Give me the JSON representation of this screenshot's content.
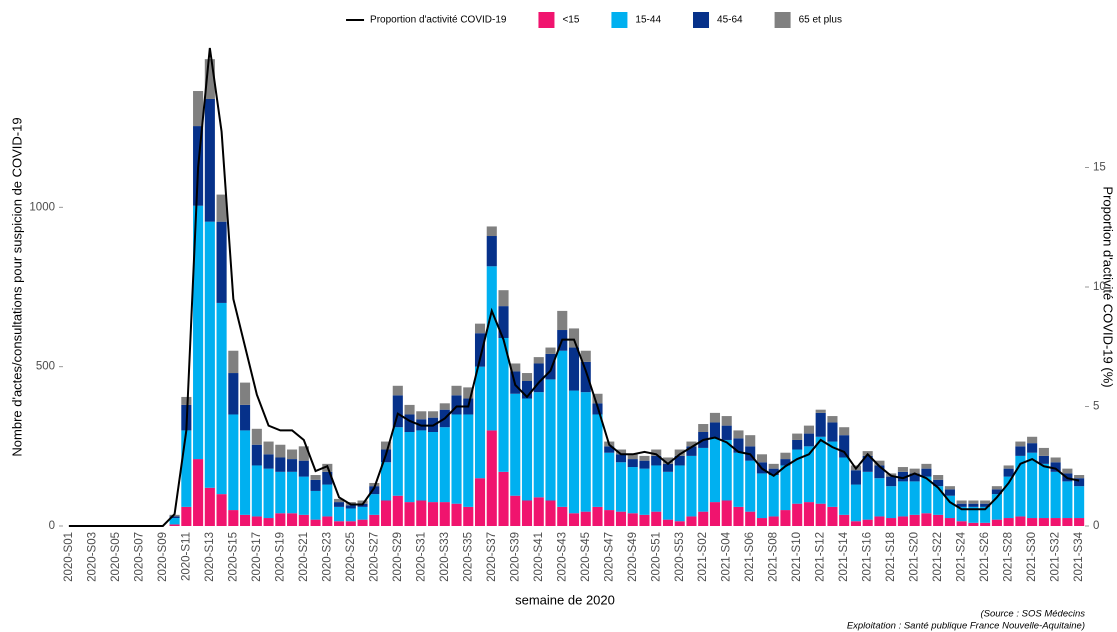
{
  "chart_data": {
    "type": "bar",
    "stacked": true,
    "legend": "top",
    "grid": false,
    "x_label": "semaine de 2020",
    "y_label": "Nombre d'actes/consultations pour suspicion de COVID-19",
    "y2_label": "Proportion d'activité COVID-19 (%)",
    "annotations": [
      "(Source : SOS Médecins",
      "Exploitation : Santé publique France Nouvelle-Aquitaine)"
    ],
    "categories": [
      "2020-S01",
      null,
      "2020-S03",
      null,
      "2020-S05",
      null,
      "2020-S07",
      null,
      "2020-S09",
      null,
      "2020-S11",
      null,
      "2020-S13",
      null,
      "2020-S15",
      null,
      "2020-S17",
      null,
      "2020-S19",
      null,
      "2020-S21",
      null,
      "2020-S23",
      null,
      "2020-S25",
      null,
      "2020-S27",
      null,
      "2020-S29",
      null,
      "2020-S31",
      null,
      "2020-S33",
      null,
      "2020-S35",
      null,
      "2020-S37",
      null,
      "2020-S39",
      null,
      "2020-S41",
      null,
      "2020-S43",
      null,
      "2020-S45",
      null,
      "2020-S47",
      null,
      "2020-S49",
      null,
      "2020-S51",
      null,
      "2020-S53",
      null,
      "2021-S02",
      null,
      "2021-S04",
      null,
      "2021-S06",
      null,
      "2021-S08",
      null,
      "2021-S10",
      null,
      "2021-S12",
      null,
      "2021-S14",
      null,
      "2021-S16",
      null,
      "2021-S18",
      null,
      "2021-S20",
      null,
      "2021-S22",
      null,
      "2021-S24",
      null,
      "2021-S26",
      null,
      "2021-S28",
      null,
      "2021-S30",
      null,
      "2021-S32",
      null,
      "2021-S34"
    ],
    "ylim": [
      0,
      1500
    ],
    "yticks": [
      0,
      500,
      1000
    ],
    "y2lim": [
      0,
      20
    ],
    "y2ticks": [
      0,
      5,
      10,
      15
    ],
    "series": [
      {
        "name": "<15",
        "type": "bar",
        "color": "#f0146e",
        "values": [
          0,
          0,
          0,
          0,
          0,
          0,
          0,
          0,
          0,
          5,
          60,
          210,
          120,
          100,
          50,
          35,
          30,
          25,
          40,
          40,
          35,
          20,
          30,
          15,
          15,
          20,
          35,
          80,
          95,
          75,
          80,
          75,
          75,
          70,
          60,
          150,
          300,
          170,
          95,
          80,
          90,
          80,
          60,
          40,
          45,
          60,
          50,
          45,
          40,
          35,
          45,
          20,
          15,
          30,
          45,
          75,
          80,
          60,
          45,
          25,
          30,
          50,
          70,
          75,
          70,
          60,
          35,
          15,
          20,
          30,
          25,
          30,
          35,
          40,
          35,
          25,
          15,
          10,
          10,
          20,
          25,
          30,
          25,
          25,
          25,
          25,
          25
        ]
      },
      {
        "name": "15-44",
        "type": "bar",
        "color": "#00b0f0",
        "values": [
          0,
          0,
          0,
          0,
          0,
          0,
          0,
          0,
          0,
          20,
          240,
          795,
          835,
          600,
          300,
          265,
          160,
          155,
          130,
          130,
          120,
          90,
          100,
          45,
          40,
          40,
          65,
          120,
          215,
          220,
          220,
          220,
          235,
          280,
          290,
          350,
          515,
          420,
          320,
          320,
          330,
          380,
          490,
          385,
          375,
          290,
          180,
          155,
          145,
          145,
          145,
          150,
          175,
          190,
          200,
          200,
          190,
          170,
          160,
          140,
          130,
          140,
          170,
          175,
          210,
          205,
          180,
          115,
          150,
          120,
          100,
          110,
          105,
          115,
          90,
          70,
          45,
          50,
          50,
          80,
          130,
          190,
          205,
          170,
          145,
          115,
          100
        ]
      },
      {
        "name": "45-64",
        "type": "bar",
        "color": "#06318a",
        "values": [
          0,
          0,
          0,
          0,
          0,
          0,
          0,
          0,
          0,
          5,
          80,
          250,
          385,
          255,
          130,
          80,
          65,
          45,
          45,
          40,
          50,
          35,
          40,
          15,
          10,
          10,
          25,
          40,
          100,
          55,
          35,
          45,
          55,
          60,
          50,
          105,
          95,
          100,
          70,
          55,
          90,
          80,
          65,
          135,
          95,
          35,
          20,
          25,
          25,
          25,
          30,
          25,
          30,
          30,
          50,
          50,
          45,
          45,
          45,
          35,
          20,
          20,
          30,
          40,
          75,
          60,
          70,
          45,
          50,
          40,
          30,
          30,
          25,
          25,
          20,
          20,
          10,
          10,
          10,
          15,
          25,
          30,
          30,
          25,
          30,
          25,
          25
        ]
      },
      {
        "name": "65 et plus",
        "type": "bar",
        "color": "#808080",
        "values": [
          0,
          0,
          0,
          0,
          0,
          0,
          0,
          0,
          0,
          5,
          25,
          110,
          125,
          85,
          70,
          70,
          50,
          40,
          40,
          30,
          45,
          15,
          25,
          10,
          10,
          10,
          10,
          25,
          30,
          30,
          25,
          20,
          20,
          30,
          35,
          30,
          30,
          50,
          25,
          25,
          20,
          20,
          60,
          60,
          35,
          30,
          15,
          15,
          15,
          15,
          20,
          20,
          20,
          15,
          25,
          30,
          30,
          25,
          35,
          25,
          15,
          20,
          20,
          25,
          10,
          20,
          25,
          15,
          15,
          15,
          10,
          15,
          15,
          15,
          15,
          10,
          10,
          10,
          10,
          10,
          10,
          15,
          20,
          25,
          15,
          15,
          10
        ]
      },
      {
        "name": "Proportion d'activité COVID-19",
        "type": "line",
        "axis": "y2",
        "color": "#000000",
        "values": [
          0,
          0,
          0,
          0,
          0,
          0,
          0,
          0,
          0,
          0.5,
          4,
          15,
          20,
          16.5,
          9.5,
          7.5,
          5.5,
          4.2,
          4,
          4,
          3.6,
          2.3,
          2.5,
          1.2,
          0.9,
          0.9,
          1.6,
          3,
          4.7,
          4.4,
          4.2,
          4.2,
          4.5,
          5,
          5,
          7,
          9,
          7.8,
          5.9,
          5.4,
          6,
          6.5,
          7.8,
          7.8,
          6.5,
          5,
          3.4,
          3,
          3,
          3.1,
          3,
          2.6,
          3,
          3.3,
          3.6,
          3.7,
          3.5,
          3.1,
          3,
          2.4,
          2.1,
          2.5,
          2.8,
          3,
          3.6,
          3.3,
          3.1,
          2.4,
          3,
          2.5,
          2.1,
          2,
          2.2,
          2,
          1.6,
          1,
          0.7,
          0.7,
          0.7,
          1.2,
          1.8,
          2.6,
          2.8,
          2.5,
          2.4,
          2,
          1.9
        ]
      }
    ]
  }
}
